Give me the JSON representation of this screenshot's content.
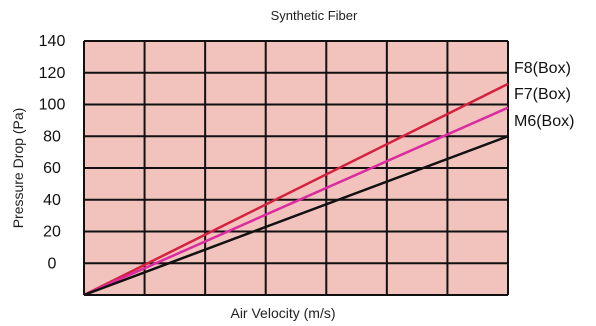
{
  "chart_data": {
    "type": "line",
    "title": "Synthetic Fiber",
    "xlabel": "Air Velocity (m/s)",
    "ylabel": "Pressure Drop (Pa)",
    "y_tick_labels": [
      "140",
      "120",
      "100",
      "80",
      "60",
      "40",
      "20",
      "0"
    ],
    "x_range": [
      0,
      7
    ],
    "y_range": [
      0,
      8
    ],
    "x_grid_count": 7,
    "y_grid_count": 8,
    "grid": true,
    "legend": "right-end labels",
    "plot_background": "#f2c3bd",
    "series": [
      {
        "name": "F8(Box)",
        "color": "#d5203f",
        "x": [
          0,
          7
        ],
        "y": [
          0,
          6.65
        ]
      },
      {
        "name": "F7(Box)",
        "color": "#dc2aa0",
        "x": [
          0,
          7
        ],
        "y": [
          0,
          5.9
        ]
      },
      {
        "name": "M6(Box)",
        "color": "#111111",
        "x": [
          0,
          7
        ],
        "y": [
          0,
          5.0
        ]
      }
    ]
  }
}
